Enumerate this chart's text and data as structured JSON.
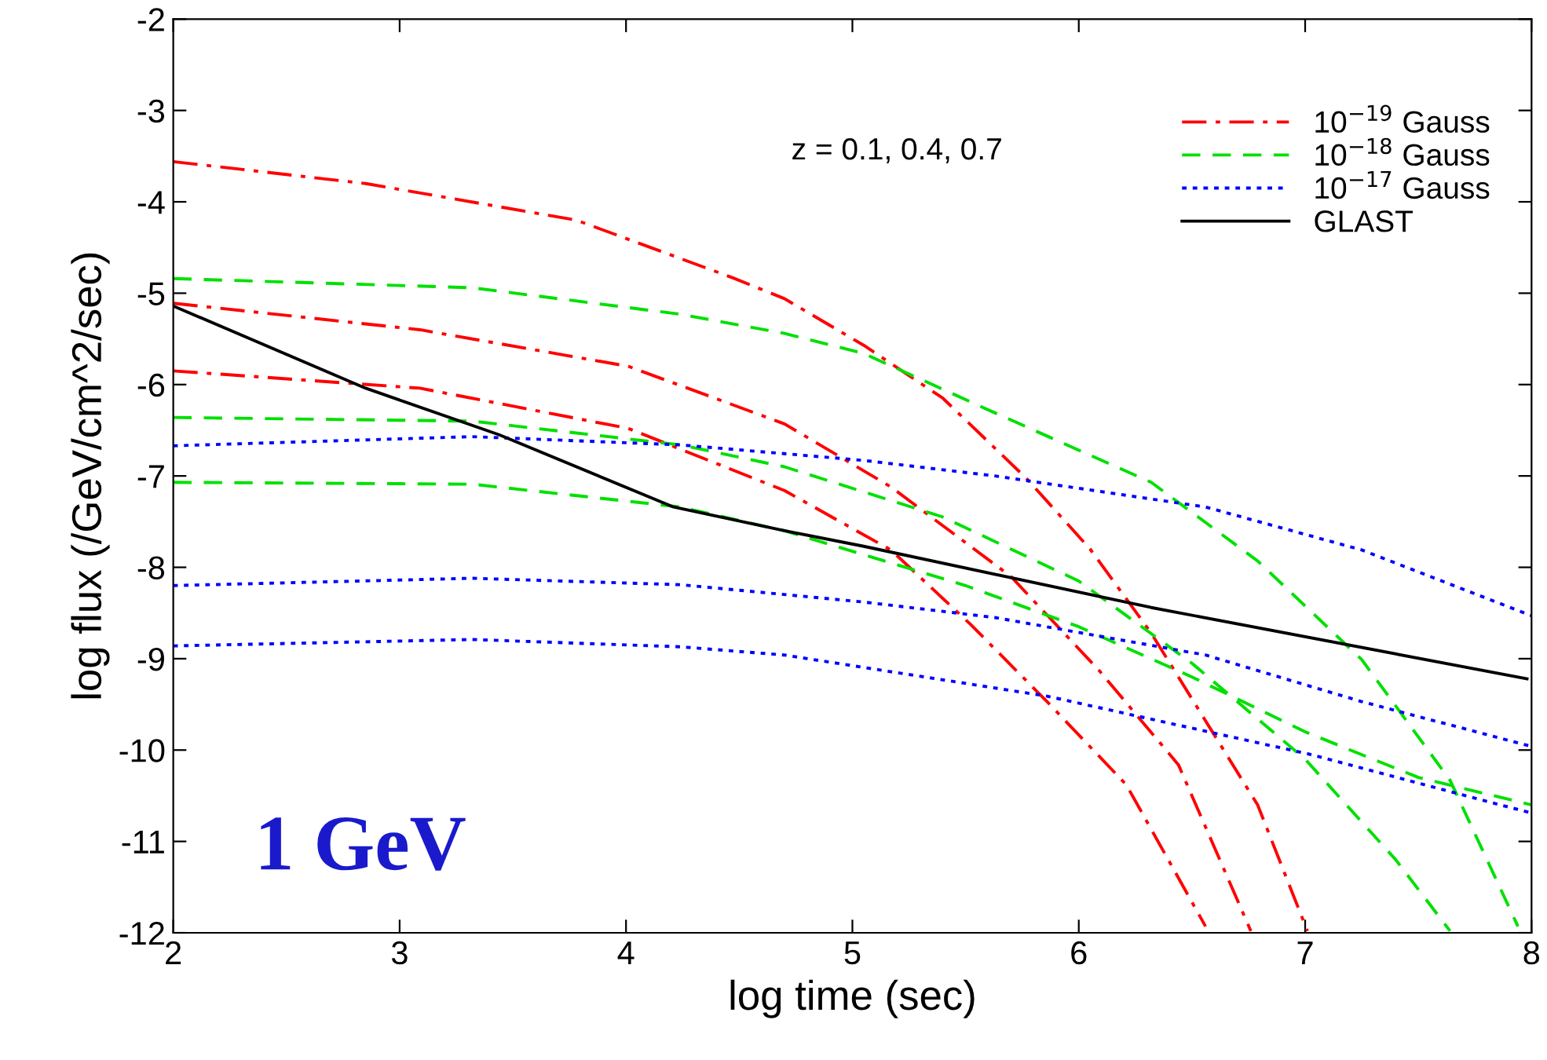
{
  "chart_data": {
    "type": "line",
    "xlabel": "log time (sec)",
    "ylabel": "log flux (/GeV/cm^2/sec)",
    "xlim": [
      2,
      8
    ],
    "xticks": [
      2,
      3,
      4,
      5,
      6,
      7,
      8
    ],
    "ylim": [
      -12,
      -2
    ],
    "yticks": [
      -12,
      -11,
      -10,
      -9,
      -8,
      -7,
      -6,
      -5,
      -4,
      -3,
      -2
    ],
    "grid": false,
    "legend": "top right",
    "annotations": [
      "z = 0.1, 0.4, 0.7",
      "1 GeV"
    ],
    "series": [
      {
        "name": "10$^{−19}$ Gauss",
        "color": "#ff0000",
        "line_style": "dashdot",
        "x": [
          2,
          2.85,
          3.78,
          4.47,
          4.7,
          5.05,
          5.4,
          5.77,
          6.05,
          6.32,
          6.79,
          7.01
        ],
        "values": [
          -3.56,
          -3.8,
          -4.2,
          -4.83,
          -5.06,
          -5.57,
          -6.15,
          -7.03,
          -7.8,
          -8.72,
          -10.6,
          -11.98
        ]
      },
      {
        "color": "#ff0000",
        "line_style": "dashdot",
        "x": [
          2,
          3.09,
          4.01,
          4.7,
          5.17,
          5.7,
          6.09,
          6.44,
          6.76
        ],
        "values": [
          -5.11,
          -5.4,
          -5.8,
          -6.43,
          -7.12,
          -8.1,
          -9.13,
          -10.16,
          -11.98
        ]
      },
      {
        "color": "#ff0000",
        "line_style": "dashdot",
        "x": [
          2,
          3.09,
          4.01,
          4.7,
          5.17,
          5.52,
          5.86,
          6.21,
          6.56
        ],
        "values": [
          -5.85,
          -6.04,
          -6.48,
          -7.16,
          -7.81,
          -8.62,
          -9.47,
          -10.38,
          -11.93
        ]
      },
      {
        "name": "10$^{−18}$ Gauss",
        "color": "#00e000",
        "line_style": "dashed",
        "x": [
          2,
          3.32,
          4.24,
          4.7,
          5.05,
          5.63,
          6.32,
          6.79,
          7.25,
          7.64,
          7.94
        ],
        "values": [
          -4.84,
          -4.94,
          -5.23,
          -5.44,
          -5.66,
          -6.31,
          -7.07,
          -7.93,
          -9.01,
          -10.33,
          -11.93
        ]
      },
      {
        "color": "#00e000",
        "line_style": "dashed",
        "x": [
          2,
          3.32,
          4.24,
          4.7,
          5.4,
          6.0,
          6.5,
          7.0,
          7.4,
          7.64
        ],
        "values": [
          -6.36,
          -6.4,
          -6.66,
          -6.9,
          -7.45,
          -8.15,
          -9.05,
          -10.1,
          -11.2,
          -11.98
        ]
      },
      {
        "color": "#00e000",
        "line_style": "dashed",
        "x": [
          2,
          3.32,
          4.24,
          4.7,
          5.5,
          6.0,
          6.5,
          7.0,
          7.5,
          8
        ],
        "values": [
          -7.07,
          -7.09,
          -7.34,
          -7.6,
          -8.2,
          -8.65,
          -9.2,
          -9.8,
          -10.3,
          -10.6
        ]
      },
      {
        "name": "10$^{−17}$ Gauss",
        "color": "#0000ff",
        "line_style": "dotted",
        "x": [
          2,
          3.32,
          4.24,
          5.05,
          5.63,
          6.56,
          7.25,
          8
        ],
        "values": [
          -6.67,
          -6.57,
          -6.66,
          -6.83,
          -7.0,
          -7.34,
          -7.81,
          -8.53
        ]
      },
      {
        "color": "#0000ff",
        "line_style": "dotted",
        "x": [
          2,
          3.32,
          4.24,
          5.05,
          5.63,
          6.56,
          7.25,
          8
        ],
        "values": [
          -8.2,
          -8.12,
          -8.19,
          -8.38,
          -8.55,
          -8.96,
          -9.47,
          -9.96
        ]
      },
      {
        "color": "#0000ff",
        "line_style": "dotted",
        "x": [
          2,
          3.32,
          4.24,
          4.7,
          5.86,
          7.01,
          8
        ],
        "values": [
          -8.86,
          -8.79,
          -8.87,
          -8.96,
          -9.41,
          -10.04,
          -10.69
        ]
      },
      {
        "name": "GLAST",
        "color": "#000000",
        "line_style": "solid",
        "x": [
          2,
          2.85,
          3.44,
          4.21,
          4.7,
          5.05,
          6.32,
          7.98
        ],
        "values": [
          -5.14,
          -6.04,
          -6.55,
          -7.34,
          -7.6,
          -7.77,
          -8.44,
          -9.22
        ]
      }
    ]
  }
}
